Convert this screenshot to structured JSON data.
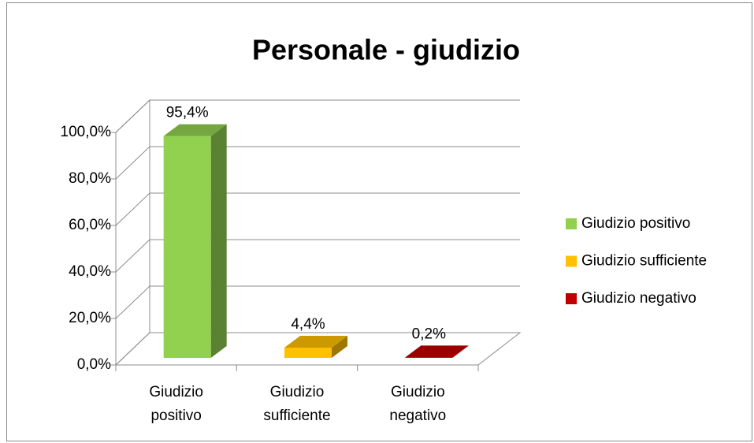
{
  "chart_data": {
    "type": "bar3d",
    "title": "Personale - giudizio",
    "categories": [
      "Giudizio positivo",
      "Giudizio sufficiente",
      "Giudizio negativo"
    ],
    "values": [
      95.4,
      4.4,
      0.2
    ],
    "value_labels": [
      "95,4%",
      "4,4%",
      "0,2%"
    ],
    "colors": [
      "#92d050",
      "#ffc000",
      "#c00000"
    ],
    "ylim": [
      0,
      100
    ],
    "yticks": [
      {
        "value": 0,
        "label": "0,0%"
      },
      {
        "value": 20,
        "label": "20,0%"
      },
      {
        "value": 40,
        "label": "40,0%"
      },
      {
        "value": 60,
        "label": "60,0%"
      },
      {
        "value": 80,
        "label": "80,0%"
      },
      {
        "value": 100,
        "label": "100,0%"
      }
    ],
    "grid": true,
    "legend": "right"
  }
}
